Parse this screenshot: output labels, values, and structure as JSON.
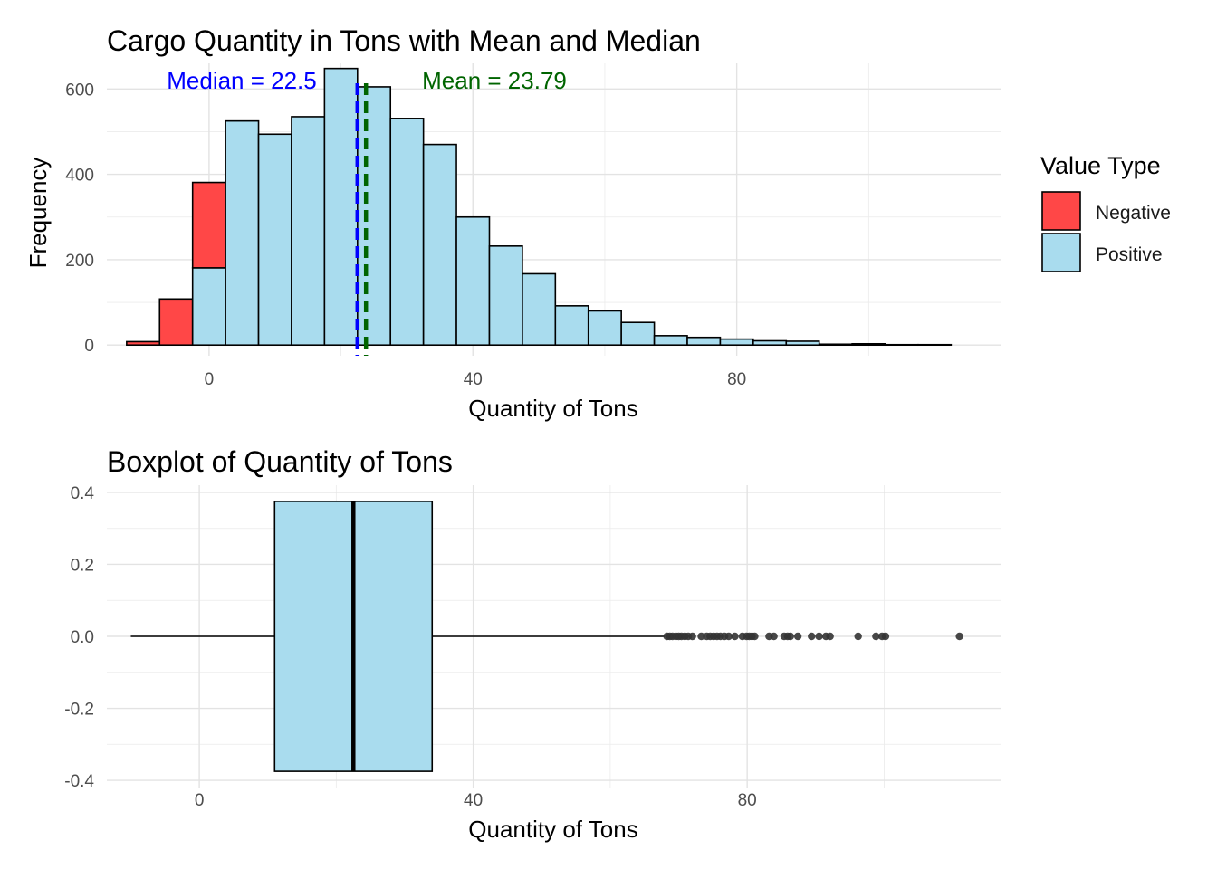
{
  "chart_data": [
    {
      "type": "histogram",
      "title": "Cargo Quantity in Tons with Mean and Median",
      "xlabel": "Quantity of Tons",
      "ylabel": "Frequency",
      "xlim": [
        -15.5,
        120
      ],
      "ylim": [
        -25,
        660
      ],
      "xticks": [
        0,
        40,
        80
      ],
      "yticks": [
        0,
        200,
        400,
        600
      ],
      "grid": true,
      "bin_width": 5,
      "bin_starts": [
        -12.5,
        -7.5,
        -2.5,
        2.5,
        7.5,
        12.5,
        17.5,
        22.5,
        27.5,
        32.5,
        37.5,
        42.5,
        47.5,
        52.5,
        57.5,
        62.5,
        67.5,
        72.5,
        77.5,
        82.5,
        87.5,
        92.5,
        97.5,
        102.5,
        107.5
      ],
      "series": [
        {
          "name": "Negative",
          "color": "#ff4747",
          "values": [
            8,
            108,
            200,
            0,
            0,
            0,
            0,
            0,
            0,
            0,
            0,
            0,
            0,
            0,
            0,
            0,
            0,
            0,
            0,
            0,
            0,
            0,
            0,
            0,
            0
          ]
        },
        {
          "name": "Positive",
          "color": "#a9dcee",
          "values": [
            0,
            0,
            181,
            525,
            494,
            535,
            648,
            605,
            531,
            470,
            300,
            232,
            167,
            92,
            80,
            53,
            22,
            18,
            14,
            10,
            9,
            2,
            3,
            1,
            1
          ]
        }
      ],
      "reference_lines": [
        {
          "label": "Median = 22.5",
          "value": 22.5,
          "color": "#0000ff",
          "style": "dashed"
        },
        {
          "label": "Mean = 23.79",
          "value": 23.79,
          "color": "#006400",
          "style": "dashed"
        }
      ],
      "legend": {
        "title": "Value Type",
        "position": "right",
        "entries": [
          "Negative",
          "Positive"
        ]
      }
    },
    {
      "type": "boxplot",
      "title": "Boxplot of Quantity of Tons",
      "xlabel": "Quantity of Tons",
      "ylabel": "",
      "xlim": [
        -13.5,
        117
      ],
      "ylim": [
        -0.42,
        0.42
      ],
      "xticks": [
        0,
        40,
        80
      ],
      "yticks": [
        -0.4,
        -0.2,
        0.0,
        0.2,
        0.4
      ],
      "ytick_labels": [
        "-0.4",
        "-0.2",
        "0.0",
        "0.2",
        "0.4"
      ],
      "grid": true,
      "fill": "#a9dcee",
      "box": {
        "whisker_low": -10,
        "q1": 11,
        "median": 22.5,
        "q3": 34,
        "whisker_high": 68,
        "y_half_width": 0.375
      },
      "outliers": [
        68.3,
        68.7,
        69.1,
        69.6,
        70.0,
        70.4,
        70.9,
        71.4,
        72.0,
        73.3,
        74.1,
        74.6,
        75.1,
        75.6,
        76.1,
        76.7,
        77.3,
        78.2,
        79.3,
        79.9,
        80.3,
        80.7,
        81.1,
        83.2,
        83.9,
        85.4,
        85.9,
        86.3,
        87.4,
        89.4,
        90.5,
        91.5,
        92.1,
        96.2,
        98.8,
        99.7,
        100.2,
        111.0
      ]
    }
  ]
}
